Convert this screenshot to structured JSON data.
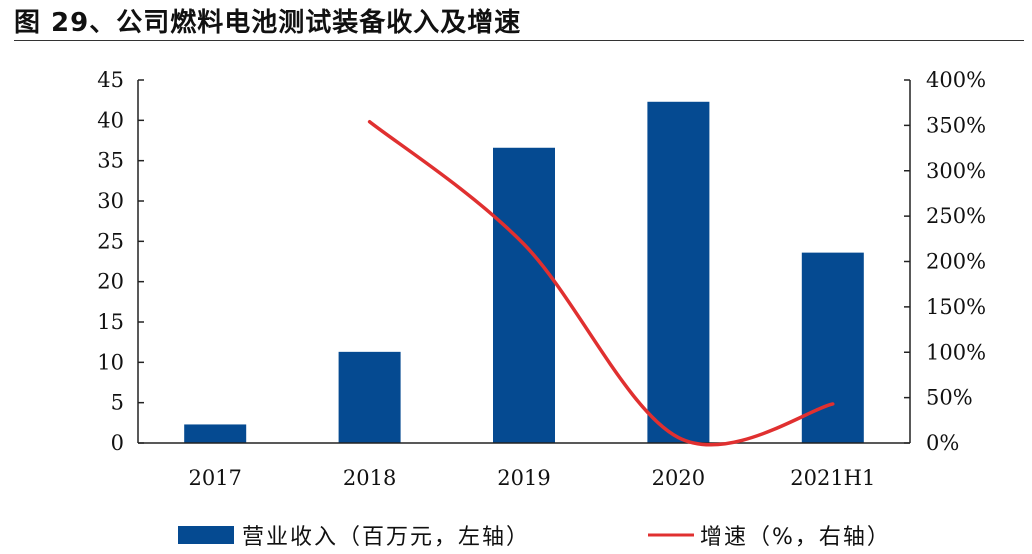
{
  "title": "图 29、公司燃料电池测试装备收入及增速",
  "chart_data": {
    "type": "bar",
    "categories": [
      "2017",
      "2018",
      "2019",
      "2020",
      "2021H1"
    ],
    "series": [
      {
        "name": "营业收入（百万元，左轴）",
        "type": "bar",
        "axis": "left",
        "values": [
          2.3,
          11.3,
          36.6,
          42.3,
          23.6
        ],
        "color": "#054a91"
      },
      {
        "name": "增速（%，右轴）",
        "type": "line",
        "axis": "right",
        "values": [
          null,
          354,
          219,
          6,
          43
        ],
        "color": "#e03030"
      }
    ],
    "left_axis": {
      "ylim": [
        0,
        45
      ],
      "ticks": [
        "0",
        "5",
        "10",
        "15",
        "20",
        "25",
        "30",
        "35",
        "40",
        "45"
      ]
    },
    "right_axis": {
      "ylim": [
        0,
        400
      ],
      "ticks": [
        "0%",
        "50%",
        "100%",
        "150%",
        "200%",
        "250%",
        "300%",
        "350%",
        "400%"
      ]
    },
    "grid": false,
    "legend_position": "bottom"
  }
}
